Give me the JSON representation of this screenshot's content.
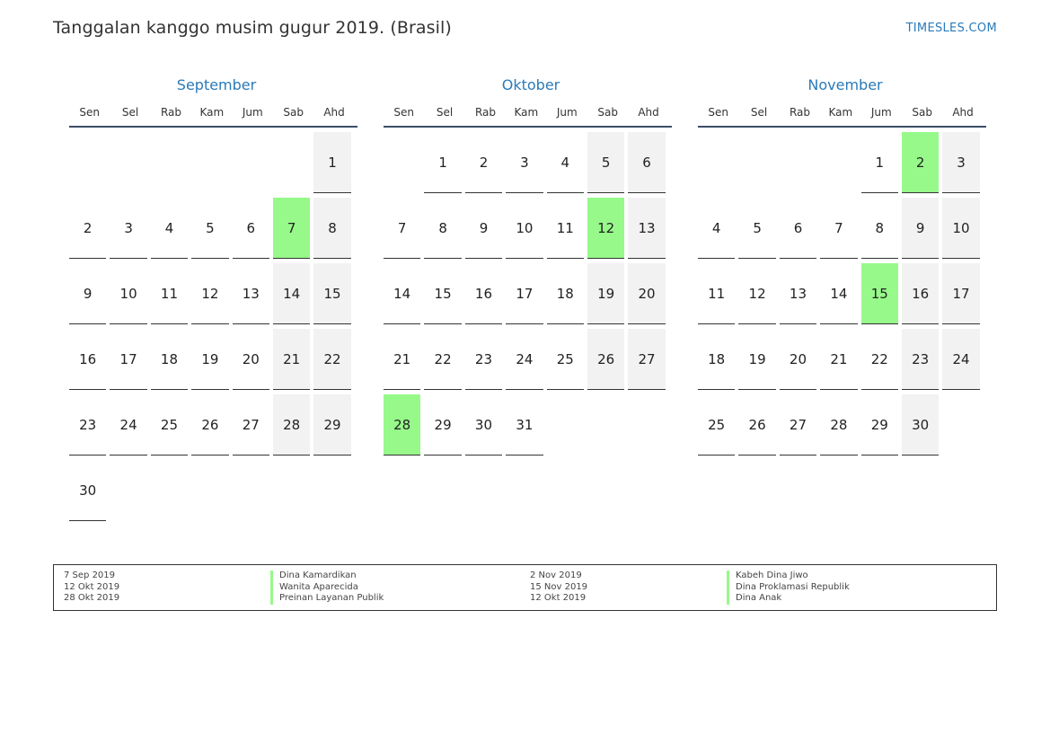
{
  "page": {
    "title": "Tanggalan kanggo musim gugur 2019. (Brasil)",
    "site": "TIMESLES.COM"
  },
  "weekdays": [
    "Sen",
    "Sel",
    "Rab",
    "Kam",
    "Jum",
    "Sab",
    "Ahd"
  ],
  "colors": {
    "holiday": "#97f98a",
    "weekend": "#f2f2f2",
    "accent": "#2a7ab8"
  },
  "months": [
    {
      "name": "September",
      "first_weekday_offset": 6,
      "days": 30,
      "holidays": [
        7
      ]
    },
    {
      "name": "Oktober",
      "first_weekday_offset": 1,
      "days": 31,
      "holidays": [
        12,
        28
      ]
    },
    {
      "name": "November",
      "first_weekday_offset": 4,
      "days": 30,
      "holidays": [
        2,
        15
      ]
    }
  ],
  "legend": {
    "left": [
      {
        "date": "7 Sep 2019",
        "name": "Dina Kamardikan"
      },
      {
        "date": "12 Okt 2019",
        "name": "Wanita Aparecida"
      },
      {
        "date": "28 Okt 2019",
        "name": "Preinan Layanan Publik"
      }
    ],
    "right": [
      {
        "date": "2 Nov 2019",
        "name": "Kabeh Dina Jiwo"
      },
      {
        "date": "15 Nov 2019",
        "name": "Dina Proklamasi Republik"
      },
      {
        "date": "12 Okt 2019",
        "name": "Dina Anak"
      }
    ]
  }
}
